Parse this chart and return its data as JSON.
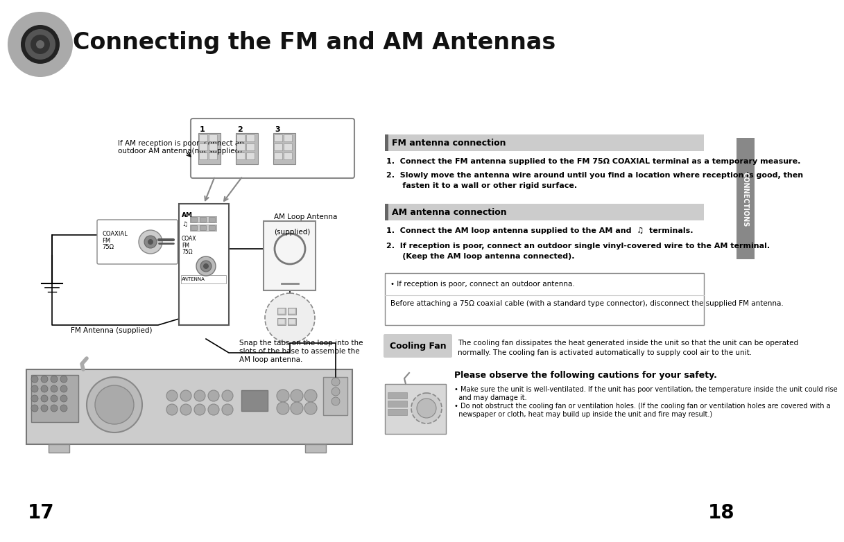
{
  "title": "Connecting the FM and AM Antennas",
  "bg_color": "#ffffff",
  "page_numbers": [
    "17",
    "18"
  ],
  "fm_section_header": "FM antenna connection",
  "fm_step1": "1.  Connect the FM antenna supplied to the FM 75Ω COAXIAL terminal as a temporary measure.",
  "fm_step2_line1": "2.  Slowly move the antenna wire around until you find a location where reception is good, then",
  "fm_step2_line2": "      fasten it to a wall or other rigid surface.",
  "am_section_header": "AM antenna connection",
  "am_step1": "1.  Connect the AM loop antenna supplied to the AM and  ♫  terminals.",
  "am_step2_line1": "2.  If reception is poor, connect an outdoor single vinyl-covered wire to the AM terminal.",
  "am_step2_line2": "      (Keep the AM loop antenna connected).",
  "note_line1": "• If reception is poor, connect an outdoor antenna.",
  "note_line2": "Before attaching a 75Ω coaxial cable (with a standard type connector), disconnect the supplied FM antenna.",
  "cooling_fan_label": "Cooling Fan",
  "cooling_fan_text1": "The cooling fan dissipates the heat generated inside the unit so that the unit can be operated",
  "cooling_fan_text2": "normally. The cooling fan is activated automatically to supply cool air to the unit.",
  "safety_header": "Please observe the following cautions for your safety.",
  "safety_bullet1a": "• Make sure the unit is well-ventilated. If the unit has poor ventilation, the temperature inside the unit could rise",
  "safety_bullet1b": "  and may damage it.",
  "safety_bullet2a": "• Do not obstruct the cooling fan or ventilation holes. (If the cooling fan or ventilation holes are covered with a",
  "safety_bullet2b": "  newspaper or cloth, heat may build up inside the unit and fire may result.)",
  "left_note1a": "If AM reception is poor, connect an",
  "left_note1b": "outdoor AM antenna(not supplied).",
  "left_note2": "FM Antenna (supplied)",
  "right_note1a": "AM Loop Antenna",
  "right_note1b": "(supplied)",
  "right_note2a": "Snap the tabs on the loop into the",
  "right_note2b": "slots of the base to assemble the",
  "right_note2c": "AM loop antenna.",
  "connections_sidebar": "CONNECTIONS",
  "section_header_color": "#cccccc",
  "section_bar_color": "#666666",
  "sidebar_color": "#888888",
  "header_bg": "#f0f0f0"
}
